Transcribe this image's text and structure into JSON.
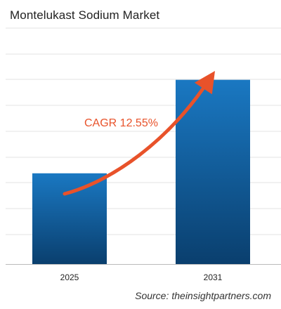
{
  "chart_data": {
    "type": "bar",
    "title": "Montelukast Sodium Market",
    "categories": [
      "2025",
      "2031"
    ],
    "values": [
      1.0,
      2.03
    ],
    "ylim": [
      0,
      2.6
    ],
    "grid": true,
    "legend": "none",
    "annotation": {
      "text": "CAGR 12.55%",
      "color": "#e8522a"
    },
    "bar_color_top": "#1a78c2",
    "bar_color_bottom": "#0a3f6e",
    "grid_color": "#e3e3e3",
    "axis_color": "#bbbbbb"
  },
  "source": {
    "label": "Source:",
    "text": "theinsightpartners.com"
  }
}
